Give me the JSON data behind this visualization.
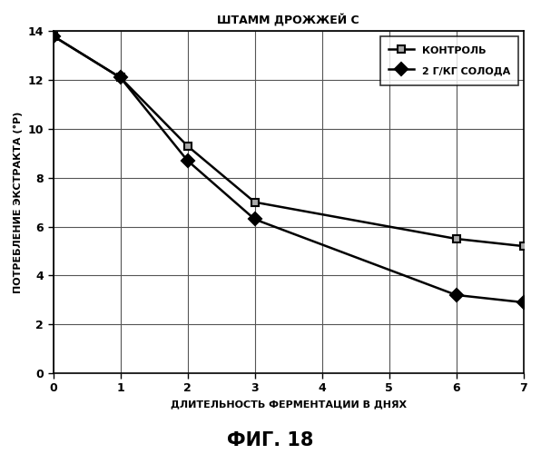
{
  "title": "ШТАММ ДРОЖЖЕЙ С",
  "xlabel": "ДЛИТЕЛЬНОСТЬ ФЕРМЕНТАЦИИ В ДНЯХ",
  "ylabel": "ПОТРЕБЛЕНИЕ ЭКСТРАКТА (°Р)",
  "caption": "ФИГ. 18",
  "xlim": [
    0,
    7
  ],
  "ylim": [
    0,
    14
  ],
  "xticks": [
    0,
    1,
    2,
    3,
    4,
    5,
    6,
    7
  ],
  "yticks": [
    0,
    2,
    4,
    6,
    8,
    10,
    12,
    14
  ],
  "series": [
    {
      "label": "КОНТРОЛЬ",
      "x": [
        0,
        1,
        2,
        3,
        6,
        7
      ],
      "y": [
        13.8,
        12.1,
        9.3,
        7.0,
        5.5,
        5.2
      ],
      "color": "#000000",
      "marker": "s",
      "markersize": 6,
      "linewidth": 1.8,
      "markerfacecolor": "#aaaaaa",
      "markeredgecolor": "#000000"
    },
    {
      "label": "2 Г/КГ СОЛОДА",
      "x": [
        0,
        1,
        2,
        3,
        6,
        7
      ],
      "y": [
        13.8,
        12.1,
        8.7,
        6.3,
        3.2,
        2.9
      ],
      "color": "#000000",
      "marker": "D",
      "markersize": 7,
      "linewidth": 1.8,
      "markerfacecolor": "#000000",
      "markeredgecolor": "#000000"
    }
  ],
  "legend_loc": "upper right",
  "grid": true,
  "bg_color": "#ffffff",
  "plot_bg_color": "#ffffff",
  "title_fontsize": 9,
  "label_fontsize": 8,
  "tick_fontsize": 9,
  "caption_fontsize": 15,
  "legend_fontsize": 8,
  "grid_color": "#555555",
  "grid_linewidth": 0.8
}
